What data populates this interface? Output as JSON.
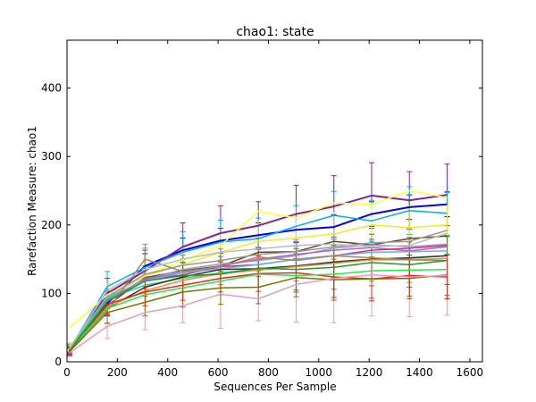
{
  "chart_data": {
    "type": "line",
    "title": "chao1: state",
    "xlabel": "Sequences Per Sample",
    "ylabel": "Rarefaction Measure: chao1",
    "xlim": [
      0,
      1650
    ],
    "ylim": [
      0,
      470
    ],
    "x_ticks": [
      0,
      200,
      400,
      600,
      800,
      1000,
      1200,
      1400,
      1600
    ],
    "y_ticks": [
      0,
      100,
      200,
      300,
      400
    ],
    "grid": false,
    "legend": "none",
    "x": [
      10,
      160,
      310,
      460,
      610,
      760,
      910,
      1060,
      1210,
      1360,
      1510
    ],
    "series": [
      {
        "color": "#0000ee",
        "values": [
          15,
          85,
          140,
          163,
          177,
          185,
          193,
          197,
          216,
          226,
          230
        ]
      },
      {
        "color": "#882299",
        "values": [
          20,
          100,
          133,
          168,
          188,
          199,
          216,
          227,
          243,
          236,
          244
        ]
      },
      {
        "color": "#00aaff",
        "values": [
          18,
          110,
          138,
          160,
          175,
          180,
          198,
          214,
          206,
          221,
          217
        ]
      },
      {
        "color": "#ffff33",
        "values": [
          50,
          98,
          126,
          148,
          170,
          220,
          210,
          232,
          230,
          250,
          240
        ]
      },
      {
        "color": "#eeee22",
        "values": [
          22,
          94,
          125,
          142,
          160,
          176,
          181,
          187,
          200,
          196,
          200
        ]
      },
      {
        "color": "#664422",
        "values": [
          16,
          82,
          123,
          133,
          140,
          160,
          161,
          176,
          171,
          180,
          184
        ]
      },
      {
        "color": "#999999",
        "values": [
          17,
          95,
          128,
          141,
          148,
          157,
          161,
          168,
          174,
          176,
          192
        ]
      },
      {
        "color": "#9999cc",
        "values": [
          19,
          92,
          120,
          135,
          143,
          148,
          155,
          166,
          171,
          168,
          172
        ]
      },
      {
        "color": "#aa66cc",
        "values": [
          18,
          90,
          122,
          130,
          140,
          150,
          157,
          163,
          167,
          162,
          168
        ]
      },
      {
        "color": "#cc3377",
        "values": [
          17,
          88,
          120,
          127,
          139,
          142,
          150,
          155,
          163,
          166,
          170
        ]
      },
      {
        "color": "#66aaff",
        "values": [
          20,
          94,
          119,
          130,
          136,
          142,
          150,
          155,
          160,
          161,
          162
        ]
      },
      {
        "color": "#33cc77",
        "values": [
          18,
          92,
          112,
          122,
          130,
          136,
          140,
          145,
          150,
          151,
          155
        ]
      },
      {
        "color": "#333333",
        "values": [
          16,
          78,
          109,
          124,
          135,
          136,
          140,
          146,
          150,
          152,
          155
        ]
      },
      {
        "color": "#ee8844",
        "values": [
          17,
          80,
          104,
          119,
          129,
          134,
          139,
          144,
          149,
          149,
          151
        ]
      },
      {
        "color": "#aa8855",
        "values": [
          18,
          75,
          150,
          132,
          139,
          153,
          148,
          155,
          152,
          149,
          148
        ]
      },
      {
        "color": "#ee2222",
        "values": [
          16,
          84,
          102,
          112,
          122,
          129,
          130,
          124,
          121,
          126,
          124
        ]
      },
      {
        "color": "#22ee44",
        "values": [
          18,
          78,
          98,
          108,
          118,
          128,
          126,
          128,
          133,
          134,
          135
        ]
      },
      {
        "color": "#777700",
        "values": [
          15,
          72,
          87,
          102,
          108,
          109,
          123,
          120,
          121,
          122,
          127
        ]
      },
      {
        "color": "#ee99bb",
        "values": [
          13,
          52,
          72,
          82,
          99,
          92,
          113,
          122,
          127,
          124,
          126
        ]
      },
      {
        "color": "#229922",
        "values": [
          17,
          88,
          118,
          126,
          128,
          137,
          135,
          138,
          145,
          142,
          148
        ]
      },
      {
        "color": "#bbbbbb",
        "values": [
          19,
          104,
          135,
          150,
          160,
          165,
          170,
          172,
          168,
          170,
          188
        ]
      }
    ],
    "error_bars": [
      {
        "series": 0,
        "err": [
          6,
          18,
          18,
          18,
          18,
          18,
          18,
          18,
          18,
          18,
          18
        ]
      },
      {
        "series": 1,
        "err": [
          6,
          22,
          30,
          35,
          40,
          35,
          42,
          45,
          48,
          42,
          45
        ]
      },
      {
        "series": 2,
        "err": [
          6,
          22,
          28,
          30,
          32,
          30,
          30,
          35,
          30,
          35,
          32
        ]
      },
      {
        "series": 4,
        "err": [
          6,
          20,
          25,
          26,
          28,
          30,
          30,
          32,
          30,
          32,
          30
        ]
      },
      {
        "series": 18,
        "err": [
          5,
          18,
          25,
          25,
          50,
          32,
          55,
          65,
          60,
          58,
          58
        ]
      },
      {
        "series": 17,
        "err": [
          5,
          16,
          20,
          22,
          24,
          24,
          28,
          30,
          28,
          30,
          30
        ]
      },
      {
        "series": 14,
        "err": [
          5,
          18,
          22,
          24,
          26,
          28,
          30,
          32,
          34,
          33,
          35
        ]
      },
      {
        "series": 19,
        "err": [
          5,
          18,
          22,
          24,
          26,
          28,
          30,
          32,
          34,
          33,
          35
        ]
      },
      {
        "series": 15,
        "err": [
          5,
          16,
          20,
          22,
          24,
          26,
          28,
          30,
          32,
          30,
          32
        ]
      }
    ]
  }
}
